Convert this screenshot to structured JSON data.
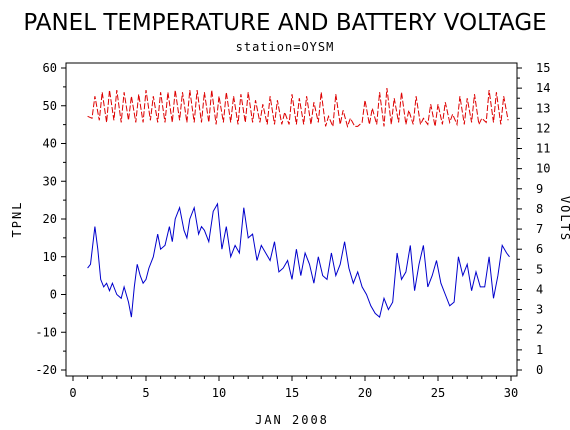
{
  "chart_data": {
    "type": "line",
    "title": "PANEL TEMPERATURE AND BATTERY VOLTAGE",
    "subtitle": "station=OYSM",
    "xlabel": "JAN 2008",
    "ylabel": "TPNL",
    "y2label": "VOLTS",
    "xlim": [
      0,
      30
    ],
    "ylim": [
      -20,
      60
    ],
    "y2lim": [
      0,
      15
    ],
    "x_ticks": [
      0,
      5,
      10,
      15,
      20,
      25,
      30
    ],
    "y_ticks": [
      -20,
      -10,
      0,
      10,
      20,
      30,
      40,
      50,
      60
    ],
    "y2_ticks": [
      0,
      1,
      2,
      3,
      4,
      5,
      6,
      7,
      8,
      9,
      10,
      11,
      12,
      13,
      14,
      15
    ],
    "grid": false,
    "series": [
      {
        "axis": "left",
        "color": "#0000cc",
        "style": "solid",
        "x": [
          1.0,
          1.2,
          1.5,
          1.7,
          1.9,
          2.1,
          2.3,
          2.5,
          2.7,
          3.0,
          3.3,
          3.5,
          3.8,
          4.0,
          4.2,
          4.4,
          4.6,
          4.8,
          5.0,
          5.2,
          5.5,
          5.8,
          6.0,
          6.3,
          6.6,
          6.8,
          7.0,
          7.3,
          7.6,
          7.8,
          8.0,
          8.3,
          8.6,
          8.8,
          9.0,
          9.3,
          9.6,
          9.9,
          10.2,
          10.5,
          10.8,
          11.1,
          11.4,
          11.7,
          12.0,
          12.3,
          12.6,
          12.9,
          13.2,
          13.5,
          13.8,
          14.1,
          14.4,
          14.7,
          15.0,
          15.3,
          15.6,
          15.9,
          16.2,
          16.5,
          16.8,
          17.1,
          17.4,
          17.7,
          18.0,
          18.3,
          18.6,
          18.9,
          19.2,
          19.5,
          19.8,
          20.1,
          20.4,
          20.7,
          21.0,
          21.3,
          21.6,
          21.9,
          22.2,
          22.5,
          22.8,
          23.1,
          23.4,
          23.7,
          24.0,
          24.3,
          24.6,
          24.9,
          25.2,
          25.5,
          25.8,
          26.1,
          26.4,
          26.7,
          27.0,
          27.3,
          27.6,
          27.9,
          28.2,
          28.5,
          28.8,
          29.1,
          29.4,
          29.7,
          29.9
        ],
        "values": [
          7,
          8,
          18,
          12,
          4,
          2,
          3,
          1,
          3,
          0,
          -1,
          2,
          -2,
          -6,
          2,
          8,
          5,
          3,
          4,
          7,
          10,
          16,
          12,
          13,
          18,
          14,
          20,
          23,
          17,
          15,
          20,
          23,
          16,
          18,
          17,
          14,
          22,
          24,
          12,
          18,
          10,
          13,
          11,
          23,
          15,
          16,
          9,
          13,
          11,
          9,
          14,
          6,
          7,
          9,
          4,
          12,
          5,
          11,
          8,
          3,
          10,
          5,
          4,
          11,
          5,
          8,
          14,
          7,
          3,
          6,
          2,
          0,
          -3,
          -5,
          -6,
          -1,
          -4,
          -2,
          11,
          4,
          6,
          13,
          1,
          8,
          13,
          2,
          5,
          9,
          3,
          0,
          -3,
          -2,
          10,
          5,
          8,
          1,
          6,
          2,
          2,
          10,
          -1,
          5,
          13,
          11,
          10
        ]
      },
      {
        "axis": "right",
        "color": "#dd0000",
        "style": "dashed",
        "x": [
          1.0,
          1.3,
          1.5,
          1.8,
          2.0,
          2.3,
          2.5,
          2.8,
          3.0,
          3.3,
          3.5,
          3.8,
          4.0,
          4.3,
          4.5,
          4.8,
          5.0,
          5.3,
          5.5,
          5.8,
          6.0,
          6.3,
          6.5,
          6.8,
          7.0,
          7.3,
          7.5,
          7.8,
          8.0,
          8.3,
          8.5,
          8.8,
          9.0,
          9.3,
          9.5,
          9.8,
          10.0,
          10.3,
          10.5,
          10.8,
          11.0,
          11.3,
          11.5,
          11.8,
          12.0,
          12.3,
          12.5,
          12.8,
          13.0,
          13.3,
          13.5,
          13.8,
          14.0,
          14.3,
          14.5,
          14.8,
          15.0,
          15.3,
          15.5,
          15.8,
          16.0,
          16.3,
          16.5,
          16.8,
          17.0,
          17.3,
          17.5,
          17.8,
          18.0,
          18.3,
          18.5,
          18.8,
          19.0,
          19.3,
          19.5,
          19.8,
          20.0,
          20.3,
          20.5,
          20.8,
          21.0,
          21.3,
          21.5,
          21.8,
          22.0,
          22.3,
          22.5,
          22.8,
          23.0,
          23.3,
          23.5,
          23.8,
          24.0,
          24.3,
          24.5,
          24.8,
          25.0,
          25.3,
          25.5,
          25.8,
          26.0,
          26.3,
          26.5,
          26.8,
          27.0,
          27.3,
          27.5,
          27.8,
          28.0,
          28.3,
          28.5,
          28.8,
          29.0,
          29.3,
          29.5,
          29.8
        ],
        "values": [
          12.6,
          12.5,
          13.6,
          12.4,
          13.8,
          12.3,
          13.9,
          12.4,
          13.9,
          12.3,
          13.8,
          12.4,
          13.6,
          12.3,
          13.7,
          12.3,
          13.9,
          12.4,
          13.6,
          12.3,
          13.8,
          12.3,
          13.8,
          12.3,
          13.9,
          12.4,
          13.8,
          12.3,
          13.9,
          12.3,
          13.9,
          12.3,
          13.8,
          12.3,
          13.9,
          12.2,
          13.6,
          12.3,
          13.8,
          12.3,
          13.6,
          12.2,
          13.7,
          12.3,
          13.8,
          12.3,
          13.4,
          12.3,
          13.2,
          12.2,
          13.6,
          12.2,
          13.4,
          12.2,
          12.8,
          12.2,
          13.7,
          12.2,
          13.5,
          12.2,
          13.6,
          12.2,
          13.3,
          12.3,
          13.8,
          12.1,
          12.6,
          12.1,
          13.7,
          12.2,
          12.9,
          12.1,
          12.5,
          12.1,
          12.1,
          12.3,
          13.4,
          12.2,
          13.0,
          12.2,
          13.8,
          12.1,
          14.0,
          12.2,
          13.5,
          12.3,
          13.8,
          12.2,
          12.9,
          12.2,
          13.6,
          12.2,
          12.5,
          12.2,
          13.2,
          12.1,
          13.2,
          12.2,
          13.3,
          12.3,
          12.7,
          12.2,
          13.6,
          12.2,
          13.5,
          12.3,
          13.7,
          12.2,
          12.5,
          12.3,
          13.9,
          12.3,
          13.8,
          12.2,
          13.6,
          12.4
        ]
      }
    ]
  }
}
